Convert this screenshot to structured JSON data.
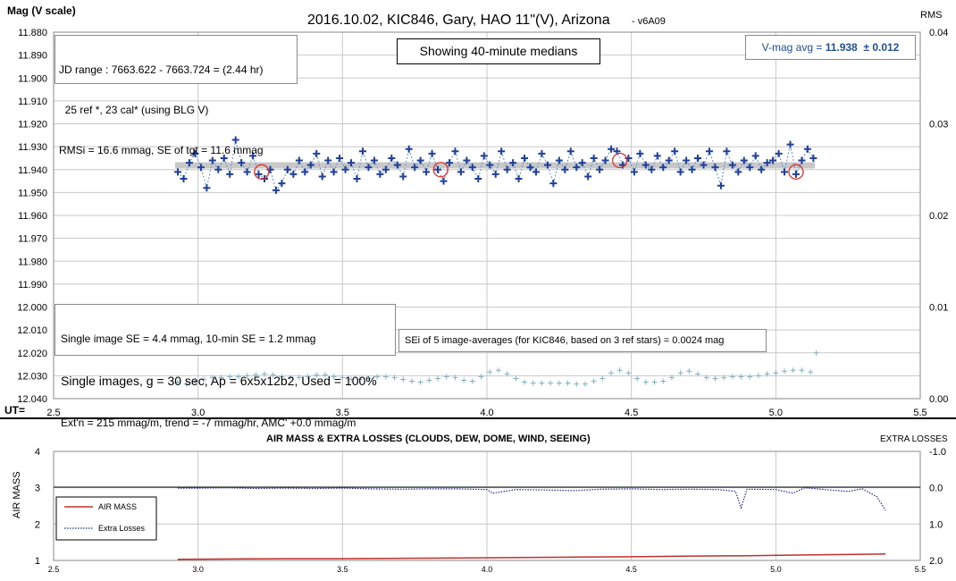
{
  "colors": {
    "plus": "#1f3f9a",
    "dash": "#5b8fd0",
    "median": "#c8c8c8",
    "circle": "#e23030",
    "rms": "#7fb3c2",
    "airmass": "#c0302c",
    "losses": "#1a2aa0",
    "vmag": "#1f4e9a",
    "grid": "#c8c8c8"
  },
  "top": {
    "title": "2016.10.02, KIC846, Gary, HAO 11\"(V), Arizona",
    "version": "- v6A09",
    "ylabel_left": "Mag (V scale)",
    "ylabel_right": "RMS",
    "ut_label": "UT=",
    "y_ticks": [
      "11.880",
      "11.890",
      "11.900",
      "11.910",
      "11.920",
      "11.930",
      "11.940",
      "11.950",
      "11.960",
      "11.970",
      "11.980",
      "11.990",
      "12.000",
      "12.010",
      "12.020",
      "12.030",
      "12.040"
    ],
    "y2_ticks": [
      "0.04",
      "0.03",
      "0.02",
      "0.01",
      "0.00"
    ],
    "x_ticks": [
      "2.5",
      "3.0",
      "3.5",
      "4.0",
      "4.5",
      "5.0",
      "5.5"
    ],
    "info_box": [
      "JD range : 7663.622 - 7663.724 = (2.44 hr)",
      "  25 ref *, 23 cal* (using BLG V)",
      "RMSi = 16.6 mmag, SE of tgt = 11.6 mmag"
    ],
    "median_note": "Showing 40-minute medians",
    "vmag_prefix": "V-mag avg = ",
    "vmag_value": "11.938",
    "vmag_err": "  ± 0.012",
    "se_box": {
      "line1": "Single image SE = 4.4 mmag, 10-min SE = 1.2 mmag",
      "line2": "Single images, g = 30 sec, Ap = 6x5x12b2, Used = 100%",
      "line3": "Ext'n = 215 mmag/m, trend = -7 mmag/hr, AMC' +0.0 mmag/m"
    },
    "sei_note": "SEi of 5 image-averages (for KIC846, based on 3 ref stars) = 0.0024 mag"
  },
  "bottom": {
    "title": "AIR MASS & EXTRA LOSSES (CLOUDS, DEW, DOME, WIND, SEEING)",
    "right_label": "EXTRA LOSSES",
    "ylabel": "AIR MASS",
    "y_ticks": [
      "4",
      "3",
      "2",
      "1"
    ],
    "y2_ticks": [
      "-1.0",
      "0.0",
      "1.0",
      "2.0"
    ],
    "x_ticks": [
      "2.5",
      "3.0",
      "3.5",
      "4.0",
      "4.5",
      "5.0",
      "5.5"
    ],
    "legend": [
      "AIR MASS",
      "Extra Losses"
    ]
  },
  "chart_data": [
    {
      "type": "scatter",
      "title": "2016.10.02, KIC846, Gary, HAO 11\"(V), Arizona",
      "xlabel": "UT=",
      "ylabel": "Mag (V scale)",
      "y2label": "RMS",
      "xlim": [
        2.5,
        5.5
      ],
      "ylim": [
        12.04,
        11.88
      ],
      "y2lim": [
        0,
        0.04
      ],
      "grid": true,
      "series": [
        {
          "name": "single images (approx.)",
          "x": [
            2.93,
            2.95,
            2.97,
            2.99,
            3.01,
            3.03,
            3.05,
            3.07,
            3.09,
            3.11,
            3.13,
            3.15,
            3.17,
            3.19,
            3.21,
            3.23,
            3.25,
            3.27,
            3.29,
            3.31,
            3.33,
            3.35,
            3.37,
            3.39,
            3.41,
            3.43,
            3.45,
            3.47,
            3.49,
            3.51,
            3.53,
            3.55,
            3.57,
            3.59,
            3.61,
            3.63,
            3.65,
            3.67,
            3.69,
            3.71,
            3.73,
            3.75,
            3.77,
            3.79,
            3.81,
            3.83,
            3.85,
            3.87,
            3.89,
            3.91,
            3.93,
            3.95,
            3.97,
            3.99,
            4.01,
            4.03,
            4.05,
            4.07,
            4.09,
            4.11,
            4.13,
            4.15,
            4.17,
            4.19,
            4.21,
            4.23,
            4.25,
            4.27,
            4.29,
            4.31,
            4.33,
            4.35,
            4.37,
            4.39,
            4.41,
            4.43,
            4.45,
            4.47,
            4.49,
            4.51,
            4.53,
            4.55,
            4.57,
            4.59,
            4.61,
            4.63,
            4.65,
            4.67,
            4.69,
            4.71,
            4.73,
            4.75,
            4.77,
            4.79,
            4.81,
            4.83,
            4.85,
            4.87,
            4.89,
            4.91,
            4.93,
            4.95,
            4.97,
            4.99,
            5.01,
            5.03,
            5.05,
            5.07,
            5.09,
            5.11,
            5.13
          ],
          "y": [
            11.941,
            11.944,
            11.937,
            11.933,
            11.939,
            11.948,
            11.936,
            11.94,
            11.935,
            11.942,
            11.927,
            11.937,
            11.941,
            11.934,
            11.942,
            11.944,
            11.94,
            11.949,
            11.946,
            11.94,
            11.942,
            11.936,
            11.941,
            11.938,
            11.933,
            11.943,
            11.936,
            11.941,
            11.935,
            11.94,
            11.937,
            11.944,
            11.932,
            11.939,
            11.936,
            11.942,
            11.94,
            11.935,
            11.938,
            11.943,
            11.931,
            11.939,
            11.936,
            11.941,
            11.933,
            11.94,
            11.945,
            11.937,
            11.932,
            11.941,
            11.936,
            11.939,
            11.944,
            11.934,
            11.938,
            11.942,
            11.932,
            11.94,
            11.937,
            11.944,
            11.935,
            11.939,
            11.941,
            11.933,
            11.938,
            11.946,
            11.936,
            11.94,
            11.932,
            11.939,
            11.937,
            11.943,
            11.935,
            11.94,
            11.936,
            11.931,
            11.932,
            11.938,
            11.935,
            11.941,
            11.933,
            11.938,
            11.94,
            11.934,
            11.939,
            11.936,
            11.932,
            11.941,
            11.936,
            11.94,
            11.935,
            11.938,
            11.932,
            11.939,
            11.947,
            11.932,
            11.938,
            11.941,
            11.936,
            11.939,
            11.934,
            11.94,
            11.937,
            11.936,
            11.933,
            11.941,
            11.929,
            11.942,
            11.936,
            11.931,
            11.935
          ]
        },
        {
          "name": "40-minute medians (approx.)",
          "x": [
            3.22,
            3.84,
            4.46,
            5.07
          ],
          "y": [
            11.941,
            11.94,
            11.936,
            11.941
          ]
        },
        {
          "name": "SEi (RMS axis, approx.)",
          "x": [
            2.93,
            2.96,
            2.99,
            3.02,
            3.05,
            3.08,
            3.11,
            3.14,
            3.17,
            3.2,
            3.23,
            3.26,
            3.29,
            3.32,
            3.35,
            3.38,
            3.41,
            3.44,
            3.47,
            3.5,
            3.53,
            3.56,
            3.59,
            3.62,
            3.65,
            3.68,
            3.71,
            3.74,
            3.77,
            3.8,
            3.83,
            3.86,
            3.89,
            3.92,
            3.95,
            3.98,
            4.01,
            4.04,
            4.07,
            4.1,
            4.13,
            4.16,
            4.19,
            4.22,
            4.25,
            4.28,
            4.31,
            4.34,
            4.37,
            4.4,
            4.43,
            4.46,
            4.49,
            4.52,
            4.55,
            4.58,
            4.61,
            4.64,
            4.67,
            4.7,
            4.73,
            4.76,
            4.79,
            4.82,
            4.85,
            4.88,
            4.91,
            4.94,
            4.97,
            5.0,
            5.03,
            5.06,
            5.09,
            5.12
          ],
          "y": [
            0.0018,
            0.0016,
            0.0019,
            0.0021,
            0.0023,
            0.0023,
            0.0024,
            0.0024,
            0.0025,
            0.0026,
            0.0027,
            0.0026,
            0.0024,
            0.0023,
            0.0023,
            0.0024,
            0.0026,
            0.0026,
            0.0024,
            0.0023,
            0.0021,
            0.0021,
            0.0022,
            0.0024,
            0.0024,
            0.0023,
            0.0021,
            0.0019,
            0.0018,
            0.002,
            0.0022,
            0.0024,
            0.0023,
            0.002,
            0.0019,
            0.0024,
            0.0029,
            0.0031,
            0.0027,
            0.0022,
            0.0018,
            0.0017,
            0.0017,
            0.0017,
            0.0017,
            0.0017,
            0.0016,
            0.0016,
            0.0019,
            0.0022,
            0.0028,
            0.0031,
            0.0028,
            0.0022,
            0.0018,
            0.0018,
            0.0019,
            0.0023,
            0.0028,
            0.003,
            0.0027,
            0.0023,
            0.0022,
            0.0023,
            0.0024,
            0.0024,
            0.0024,
            0.0025,
            0.0027,
            0.0028,
            0.003,
            0.0031,
            0.0031,
            0.0029
          ]
        }
      ]
    },
    {
      "type": "line",
      "title": "AIR MASS & EXTRA LOSSES (CLOUDS, DEW, DOME, WIND, SEEING)",
      "ylabel": "AIR MASS",
      "y2label": "EXTRA LOSSES",
      "xlim": [
        2.5,
        5.5
      ],
      "ylim": [
        1,
        4
      ],
      "y2lim": [
        2.0,
        -1.0
      ],
      "grid": true,
      "series": [
        {
          "name": "AIR MASS",
          "x": [
            2.93,
            3.1,
            3.3,
            3.5,
            3.7,
            3.9,
            4.1,
            4.3,
            4.5,
            4.7,
            4.9,
            5.1,
            5.3,
            5.38
          ],
          "y": [
            1.03,
            1.04,
            1.05,
            1.05,
            1.06,
            1.07,
            1.08,
            1.09,
            1.1,
            1.12,
            1.13,
            1.15,
            1.17,
            1.18
          ]
        },
        {
          "name": "Extra Losses",
          "x": [
            2.93,
            3.0,
            3.1,
            3.2,
            3.3,
            3.4,
            3.5,
            3.6,
            3.7,
            3.8,
            3.9,
            4.0,
            4.02,
            4.1,
            4.2,
            4.3,
            4.4,
            4.5,
            4.6,
            4.7,
            4.8,
            4.86,
            4.88,
            4.9,
            5.0,
            5.06,
            5.1,
            5.2,
            5.25,
            5.3,
            5.35,
            5.38
          ],
          "y": [
            0.01,
            0.01,
            0.0,
            0.02,
            0.01,
            0.02,
            0.01,
            0.03,
            0.04,
            0.03,
            0.03,
            0.05,
            0.15,
            0.05,
            0.06,
            0.08,
            0.04,
            0.03,
            0.05,
            0.04,
            0.05,
            0.1,
            0.55,
            0.04,
            0.05,
            0.15,
            0.0,
            0.07,
            0.1,
            0.03,
            0.25,
            0.62
          ]
        }
      ]
    }
  ]
}
